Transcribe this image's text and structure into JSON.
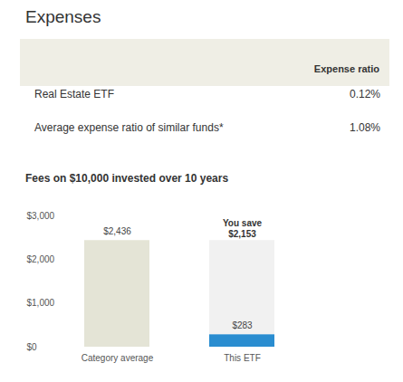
{
  "header": {
    "title": "Expenses"
  },
  "table": {
    "header": "Expense ratio",
    "rows": [
      [
        "Real Estate ETF",
        "0.12%"
      ],
      [
        "Average expense ratio of similar funds*",
        "1.08%"
      ]
    ]
  },
  "chart_data": {
    "type": "bar",
    "title": "Fees on $10,000 invested over 10 years",
    "categories": [
      "Category average",
      "This ETF"
    ],
    "values": [
      2436,
      283
    ],
    "value_labels": [
      "$2,436",
      "$283"
    ],
    "colors": [
      "#e4e4d6",
      "#2a8dd0"
    ],
    "data_labels": true,
    "grid": false,
    "ylim": [
      0,
      3000
    ],
    "yticks": [
      {
        "value": 0,
        "label": "$0"
      },
      {
        "value": 1000,
        "label": "$1,000"
      },
      {
        "value": 2000,
        "label": "$2,000"
      },
      {
        "value": 3000,
        "label": "$3,000"
      }
    ],
    "annotation": {
      "category": "This ETF",
      "text": "You save",
      "value": 2153,
      "value_label": "$2,153"
    }
  }
}
